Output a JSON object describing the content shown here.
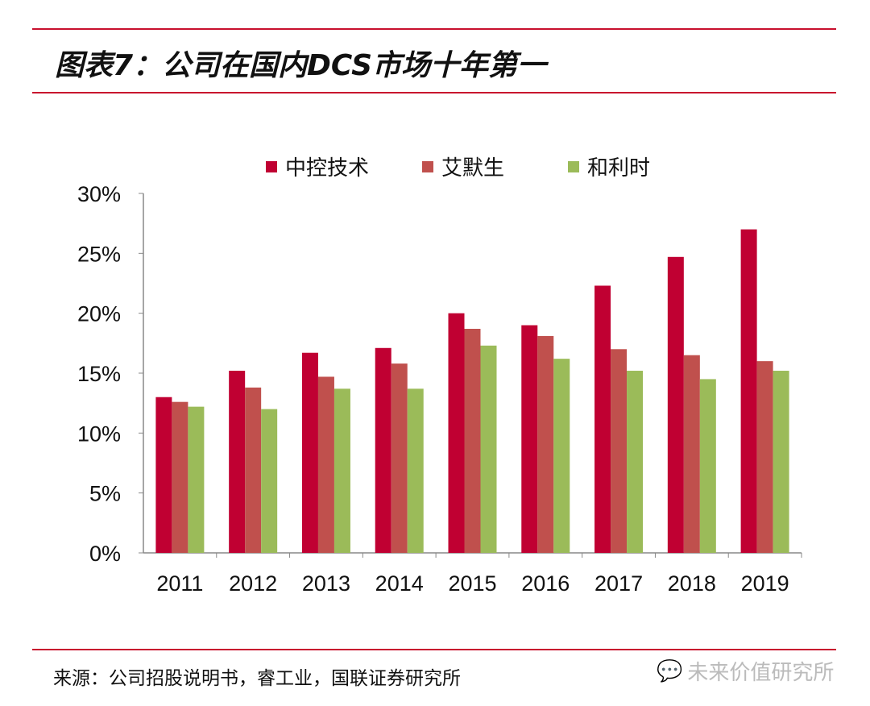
{
  "header": {
    "title": "图表7：公司在国内DCS市场十年第一"
  },
  "footer": {
    "source": "来源：公司招股说明书，睿工业，国联证券研究所",
    "watermark": "未来价值研究所",
    "watermark_icon": "wechat-icon"
  },
  "chart_data": {
    "type": "bar",
    "categories": [
      "2011",
      "2012",
      "2013",
      "2014",
      "2015",
      "2016",
      "2017",
      "2018",
      "2019"
    ],
    "series": [
      {
        "name": "中控技术",
        "color": "#C00032",
        "values": [
          13.0,
          15.2,
          16.7,
          17.1,
          20.0,
          19.0,
          22.3,
          24.7,
          27.0
        ]
      },
      {
        "name": "艾默生",
        "color": "#C0504D",
        "values": [
          12.6,
          13.8,
          14.7,
          15.8,
          18.7,
          18.1,
          17.0,
          16.5,
          16.0
        ]
      },
      {
        "name": "和利时",
        "color": "#9BBB59",
        "values": [
          12.2,
          12.0,
          13.7,
          13.7,
          17.3,
          16.2,
          15.2,
          14.5,
          15.2
        ]
      }
    ],
    "ylim": [
      0,
      30
    ],
    "yticks": [
      "0%",
      "5%",
      "10%",
      "15%",
      "20%",
      "25%",
      "30%"
    ],
    "legend": "top",
    "grid": false
  }
}
